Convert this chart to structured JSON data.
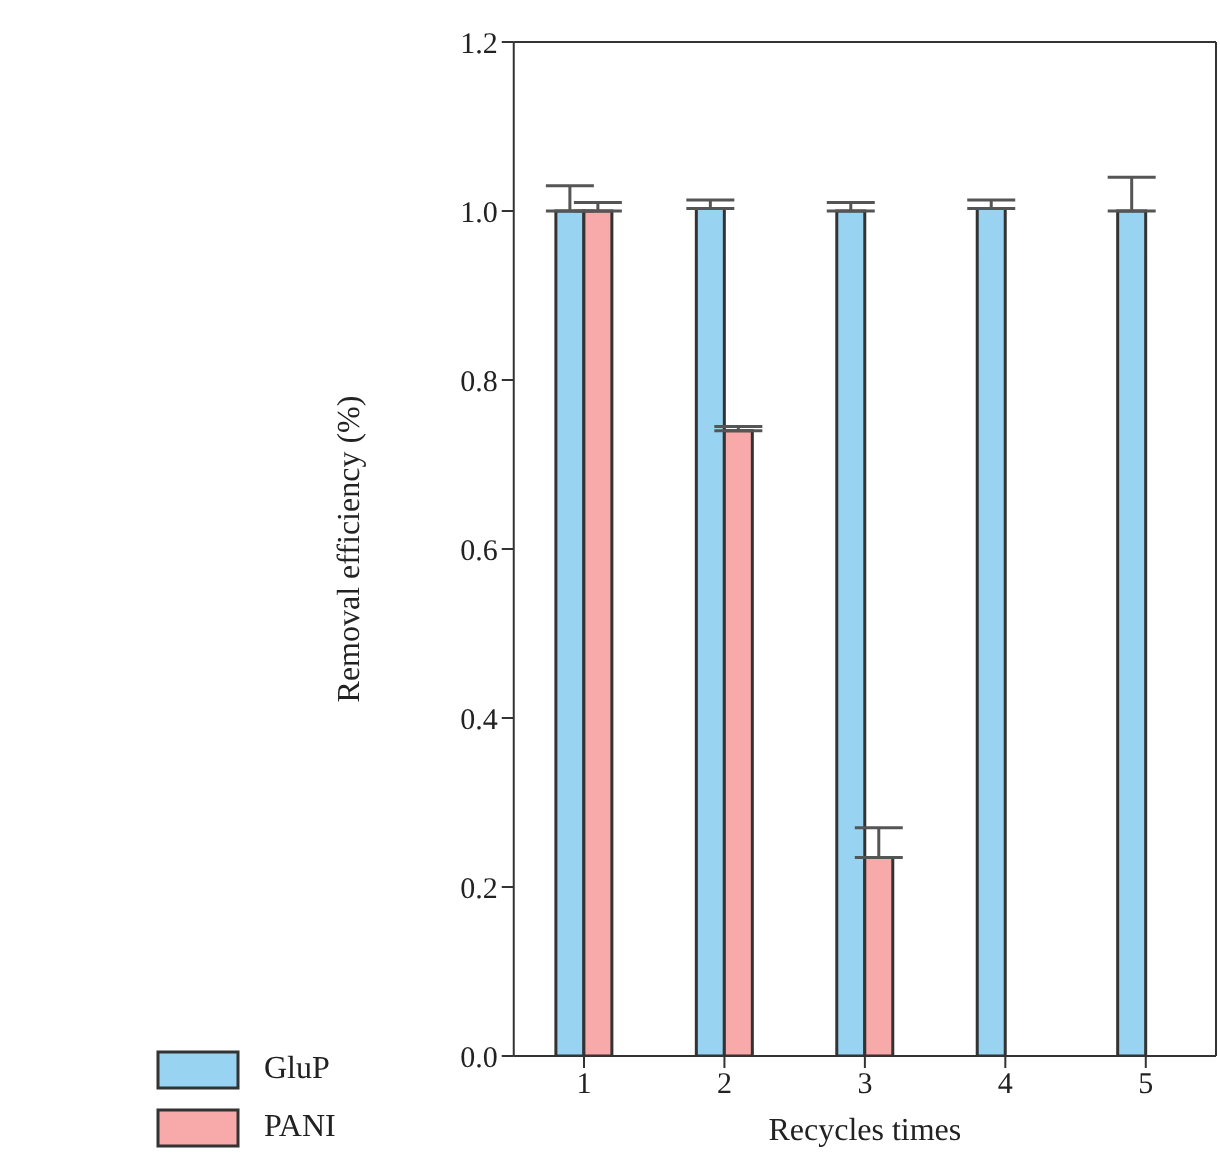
{
  "chart_data": {
    "type": "bar",
    "xlabel": "Recycles times",
    "ylabel": "Removal efficiency (%)",
    "categories": [
      "1",
      "2",
      "3",
      "4",
      "5"
    ],
    "series": [
      {
        "name": "GluP",
        "color": "#98d4f2",
        "values": [
          1.0,
          1.003,
          1.0,
          1.003,
          1.0
        ],
        "errors": [
          [
            1.0,
            1.03
          ],
          [
            1.003,
            1.013
          ],
          [
            1.0,
            1.01
          ],
          [
            1.003,
            1.013
          ],
          [
            1.0,
            1.04
          ]
        ]
      },
      {
        "name": "PANI",
        "color": "#f8a9a9",
        "values": [
          1.0,
          0.74,
          0.235,
          null,
          null
        ],
        "errors": [
          [
            1.0,
            1.01
          ],
          [
            0.74,
            0.745
          ],
          [
            0.235,
            0.27
          ],
          null,
          null
        ]
      }
    ],
    "ylim": [
      0,
      1.2
    ],
    "yticks": [
      {
        "value": 0,
        "label": "0.0"
      },
      {
        "value": 0.2,
        "label": "0.2"
      },
      {
        "value": 0.4,
        "label": "0.4"
      },
      {
        "value": 0.6,
        "label": "0.6"
      },
      {
        "value": 0.8,
        "label": "0.8"
      },
      {
        "value": 1,
        "label": "1.0"
      },
      {
        "value": 1.2,
        "label": "1.2"
      }
    ],
    "legend": "bottom left"
  }
}
